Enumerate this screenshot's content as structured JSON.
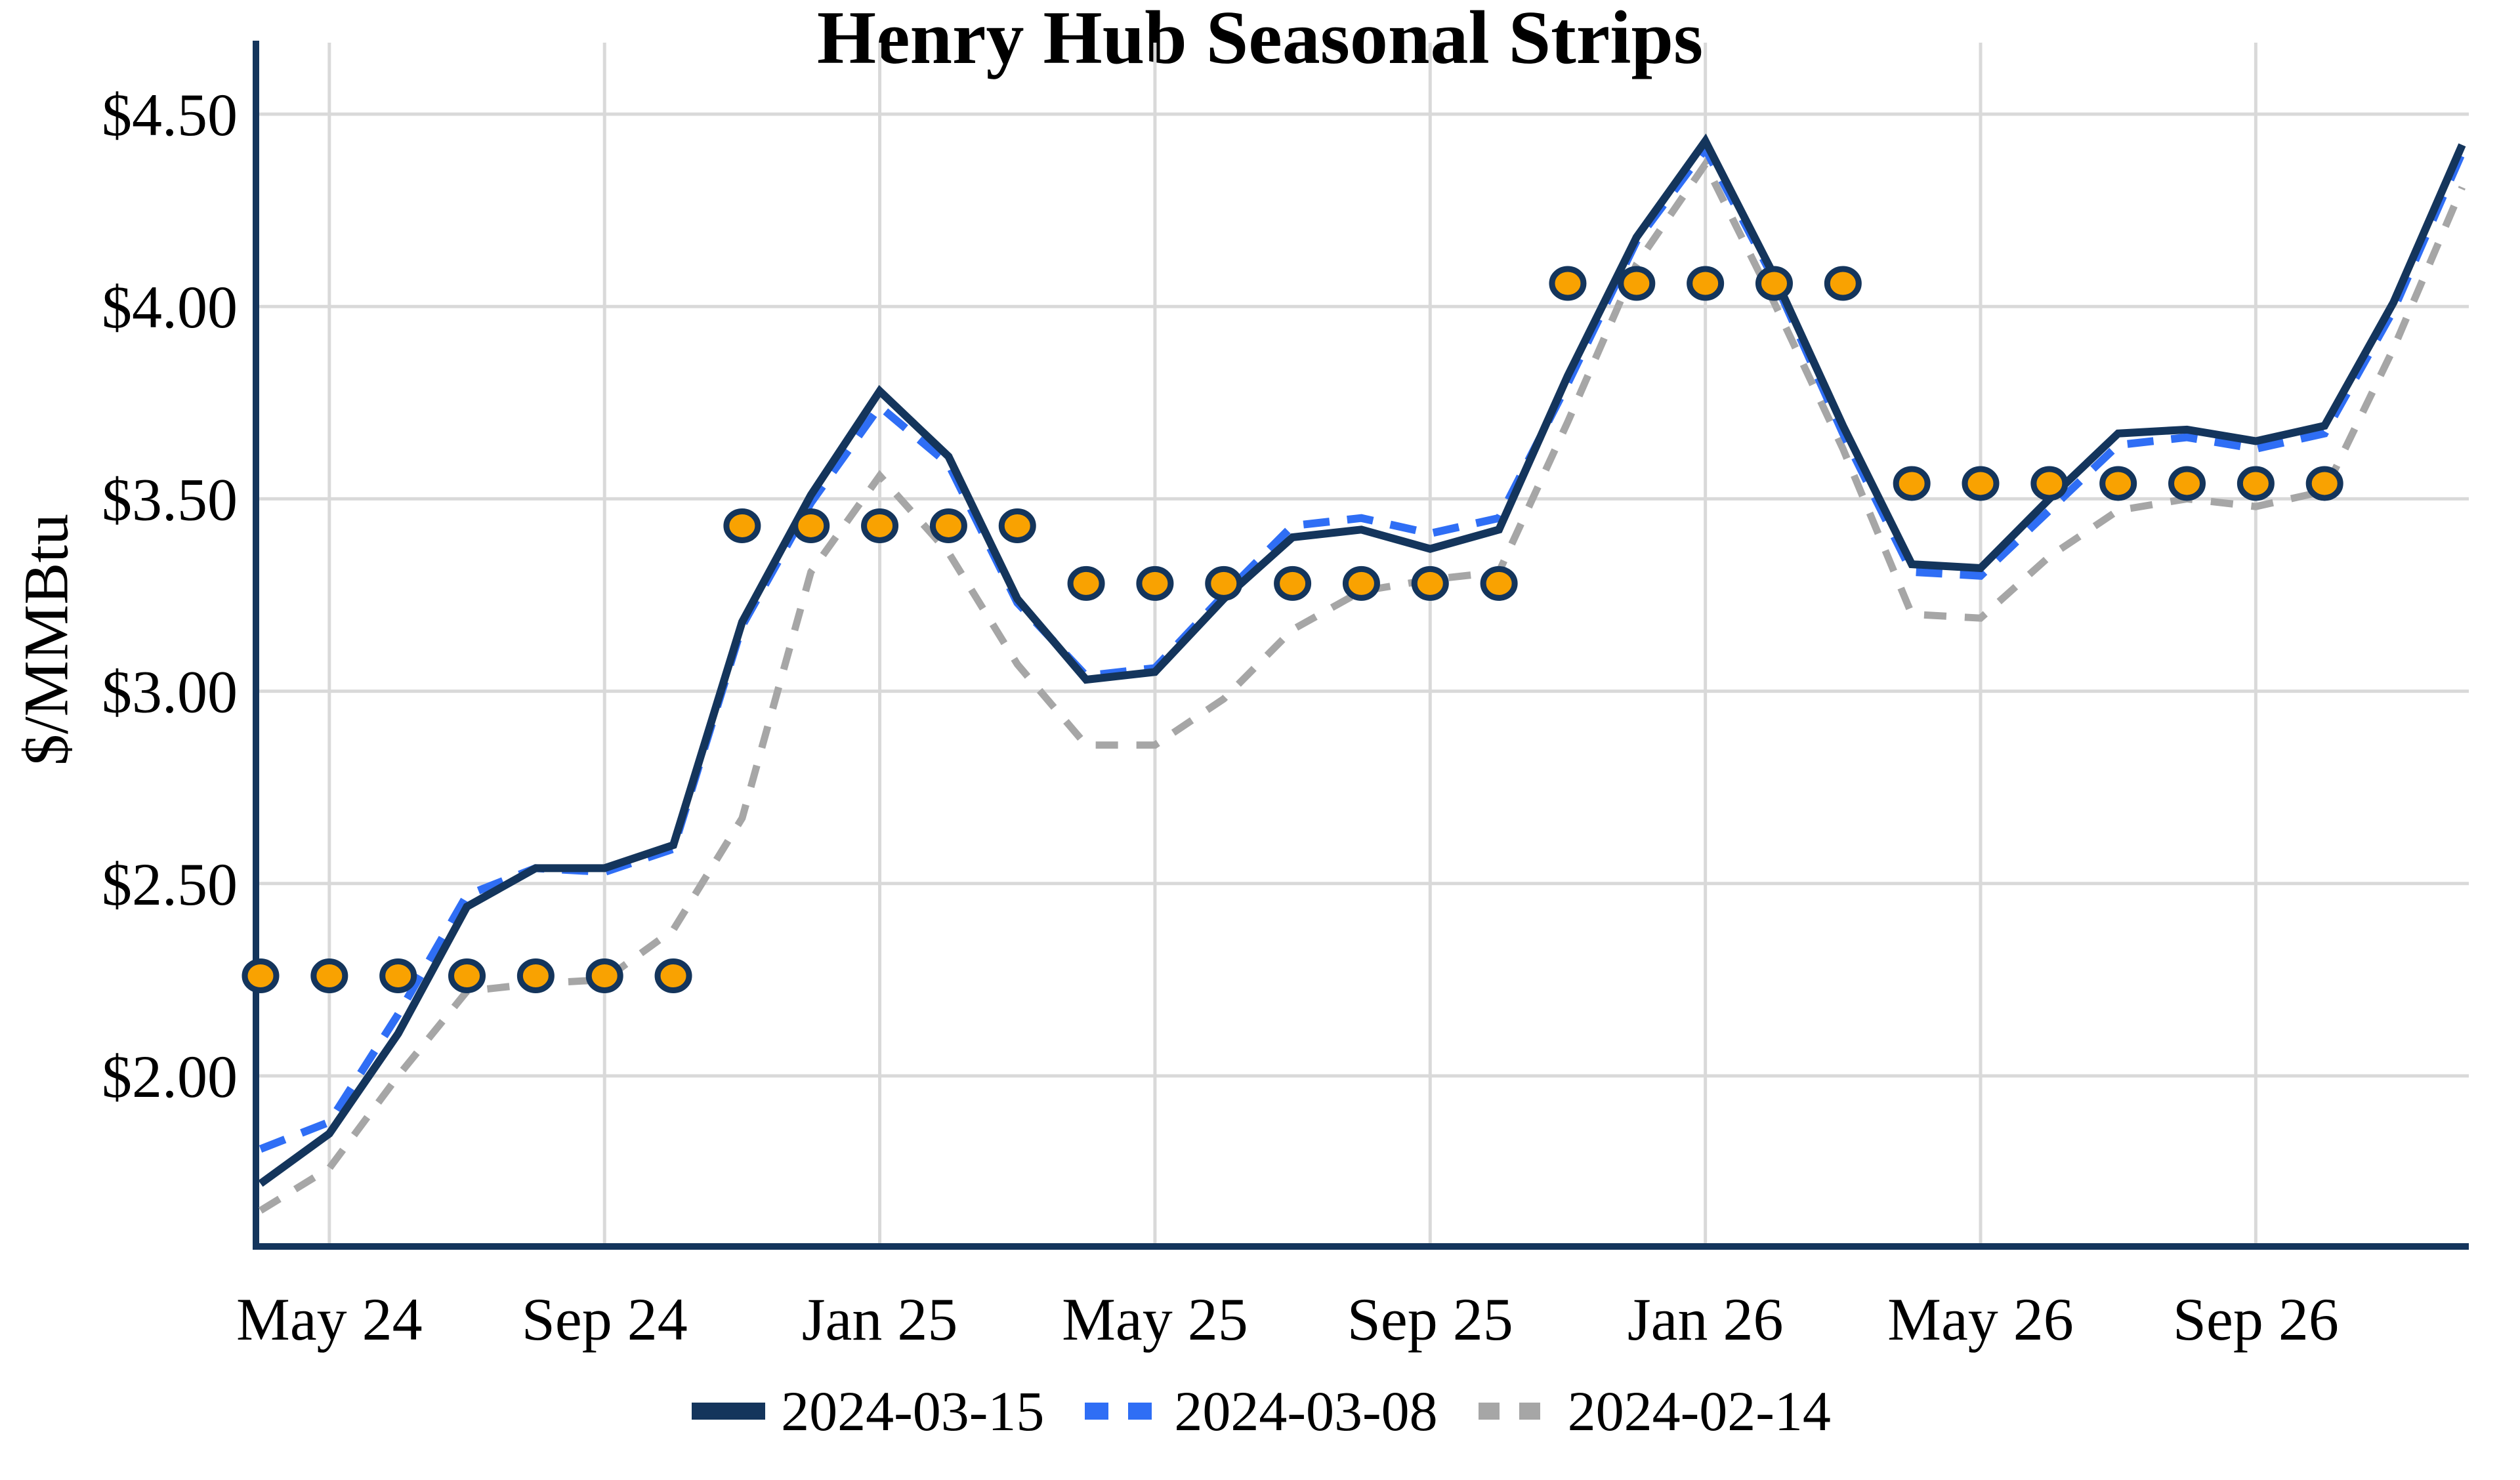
{
  "chart": {
    "title": "Henry Hub Seasonal Strips",
    "y_axis_label": "$/MMBtu"
  },
  "chart_data": {
    "type": "line",
    "title": "Henry Hub Seasonal Strips",
    "xlabel": "",
    "ylabel": "$/MMBtu",
    "grid": true,
    "legend_position": "bottom",
    "ylim": [
      1.55,
      4.69
    ],
    "months": [
      "2024-04",
      "2024-05",
      "2024-06",
      "2024-07",
      "2024-08",
      "2024-09",
      "2024-10",
      "2024-11",
      "2024-12",
      "2025-01",
      "2025-02",
      "2025-03",
      "2025-04",
      "2025-05",
      "2025-06",
      "2025-07",
      "2025-08",
      "2025-09",
      "2025-10",
      "2025-11",
      "2025-12",
      "2026-01",
      "2026-02",
      "2026-03",
      "2026-04",
      "2026-05",
      "2026-06",
      "2026-07",
      "2026-08",
      "2026-09",
      "2026-10",
      "2026-11",
      "2026-12"
    ],
    "x_tick_labels": [
      "May 24",
      "Sep 24",
      "Jan 25",
      "May 25",
      "Sep 25",
      "Jan 26",
      "May 26",
      "Sep 26"
    ],
    "x_tick_month_index": [
      1,
      5,
      9,
      13,
      17,
      21,
      25,
      29
    ],
    "y_ticks": [
      {
        "label": "$4.50",
        "value": 4.5
      },
      {
        "label": "$4.00",
        "value": 4.0
      },
      {
        "label": "$3.50",
        "value": 3.5
      },
      {
        "label": "$3.00",
        "value": 3.0
      },
      {
        "label": "$2.50",
        "value": 2.5
      },
      {
        "label": "$2.00",
        "value": 2.0
      }
    ],
    "series": [
      {
        "name": "2024-03-15",
        "color": "#14355C",
        "line_style": "solid",
        "stroke_width": 12,
        "dash": "",
        "legend_dash": "",
        "values": [
          1.72,
          1.85,
          2.11,
          2.44,
          2.54,
          2.54,
          2.6,
          3.18,
          3.51,
          3.78,
          3.61,
          3.24,
          3.03,
          3.05,
          3.24,
          3.4,
          3.42,
          3.37,
          3.42,
          3.82,
          4.18,
          4.43,
          4.08,
          3.69,
          3.33,
          3.32,
          3.5,
          3.67,
          3.68,
          3.65,
          3.69,
          4.01,
          4.42
        ]
      },
      {
        "name": "2024-03-08",
        "color": "#2F6EF5",
        "line_style": "dashed",
        "stroke_width": 12,
        "dash": "40 27",
        "legend_dash": "36 30",
        "values": [
          1.81,
          1.88,
          2.16,
          2.47,
          2.54,
          2.53,
          2.59,
          3.17,
          3.49,
          3.74,
          3.59,
          3.23,
          3.04,
          3.06,
          3.25,
          3.43,
          3.45,
          3.41,
          3.45,
          3.8,
          4.17,
          4.41,
          4.07,
          3.67,
          3.31,
          3.3,
          3.47,
          3.64,
          3.66,
          3.63,
          3.67,
          3.99,
          4.4
        ]
      },
      {
        "name": "2024-02-14",
        "color": "#A6A6A6",
        "line_style": "dashed",
        "stroke_width": 11,
        "dash": "34 28",
        "legend_dash": "32 30",
        "values": [
          1.65,
          1.76,
          2.0,
          2.22,
          2.24,
          2.25,
          2.38,
          2.67,
          3.31,
          3.56,
          3.36,
          3.07,
          2.86,
          2.86,
          2.98,
          3.16,
          3.26,
          3.29,
          3.31,
          3.7,
          4.11,
          4.37,
          4.01,
          3.63,
          3.2,
          3.19,
          3.35,
          3.47,
          3.5,
          3.48,
          3.52,
          3.89,
          4.31
        ]
      }
    ],
    "strips": [
      {
        "name": "summer-2024-strip",
        "start_month_index": 0,
        "end_month_index": 6,
        "value": 2.26
      },
      {
        "name": "winter-2024-25-strip",
        "start_month_index": 7,
        "end_month_index": 11,
        "value": 3.43
      },
      {
        "name": "summer-2025-strip",
        "start_month_index": 12,
        "end_month_index": 18,
        "value": 3.28
      },
      {
        "name": "winter-2025-26-strip",
        "start_month_index": 19,
        "end_month_index": 23,
        "value": 4.06
      },
      {
        "name": "summer-2026-strip",
        "start_month_index": 24,
        "end_month_index": 30,
        "value": 3.54
      }
    ],
    "strip_marker": {
      "fill": "#F9A201",
      "stroke": "#14355C",
      "stroke_width": 9,
      "rx": 24,
      "ry": 22
    }
  },
  "colors": {
    "axis": "#14355C",
    "gridline": "#D9D9D9",
    "background": "#FFFFFF",
    "text": "#000000",
    "navy_series": "#14355C",
    "blue_series": "#2F6EF5",
    "gray_series": "#A6A6A6",
    "orange_marker": "#F9A201"
  }
}
